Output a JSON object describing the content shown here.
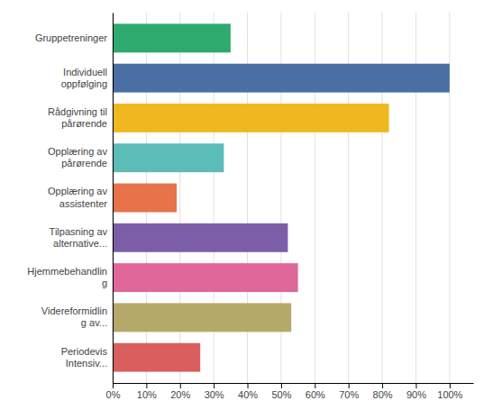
{
  "chart_data": {
    "type": "bar",
    "orientation": "horizontal",
    "categories": [
      "Gruppetreninger",
      "Individuell\noppfølging",
      "Rådgivning til\npårørende",
      "Opplæring av\npårørende",
      "Opplæring av\nassistenter",
      "Tilpasning av\nalternative...",
      "Hjemmebehandlin\ng",
      "Videreformidlin\ng av...",
      "Periodevis\nIntensiv..."
    ],
    "values": [
      35,
      100,
      82,
      33,
      19,
      52,
      55,
      53,
      26
    ],
    "colors": [
      "#2eaa6e",
      "#4a6fa5",
      "#f0b820",
      "#5bbcb8",
      "#e8724a",
      "#7b5ea7",
      "#e0679a",
      "#b5a96a",
      "#d95f5f"
    ],
    "xlim": [
      0,
      107
    ],
    "xticks": [
      {
        "value": 0,
        "label": "0%"
      },
      {
        "value": 10,
        "label": "10%"
      },
      {
        "value": 20,
        "label": "20%"
      },
      {
        "value": 30,
        "label": "30%"
      },
      {
        "value": 40,
        "label": "40%"
      },
      {
        "value": 50,
        "label": "50%"
      },
      {
        "value": 60,
        "label": "60%"
      },
      {
        "value": 70,
        "label": "70%"
      },
      {
        "value": 80,
        "label": "80%"
      },
      {
        "value": 90,
        "label": "90%"
      },
      {
        "value": 100,
        "label": "100%"
      }
    ],
    "grid": true
  }
}
